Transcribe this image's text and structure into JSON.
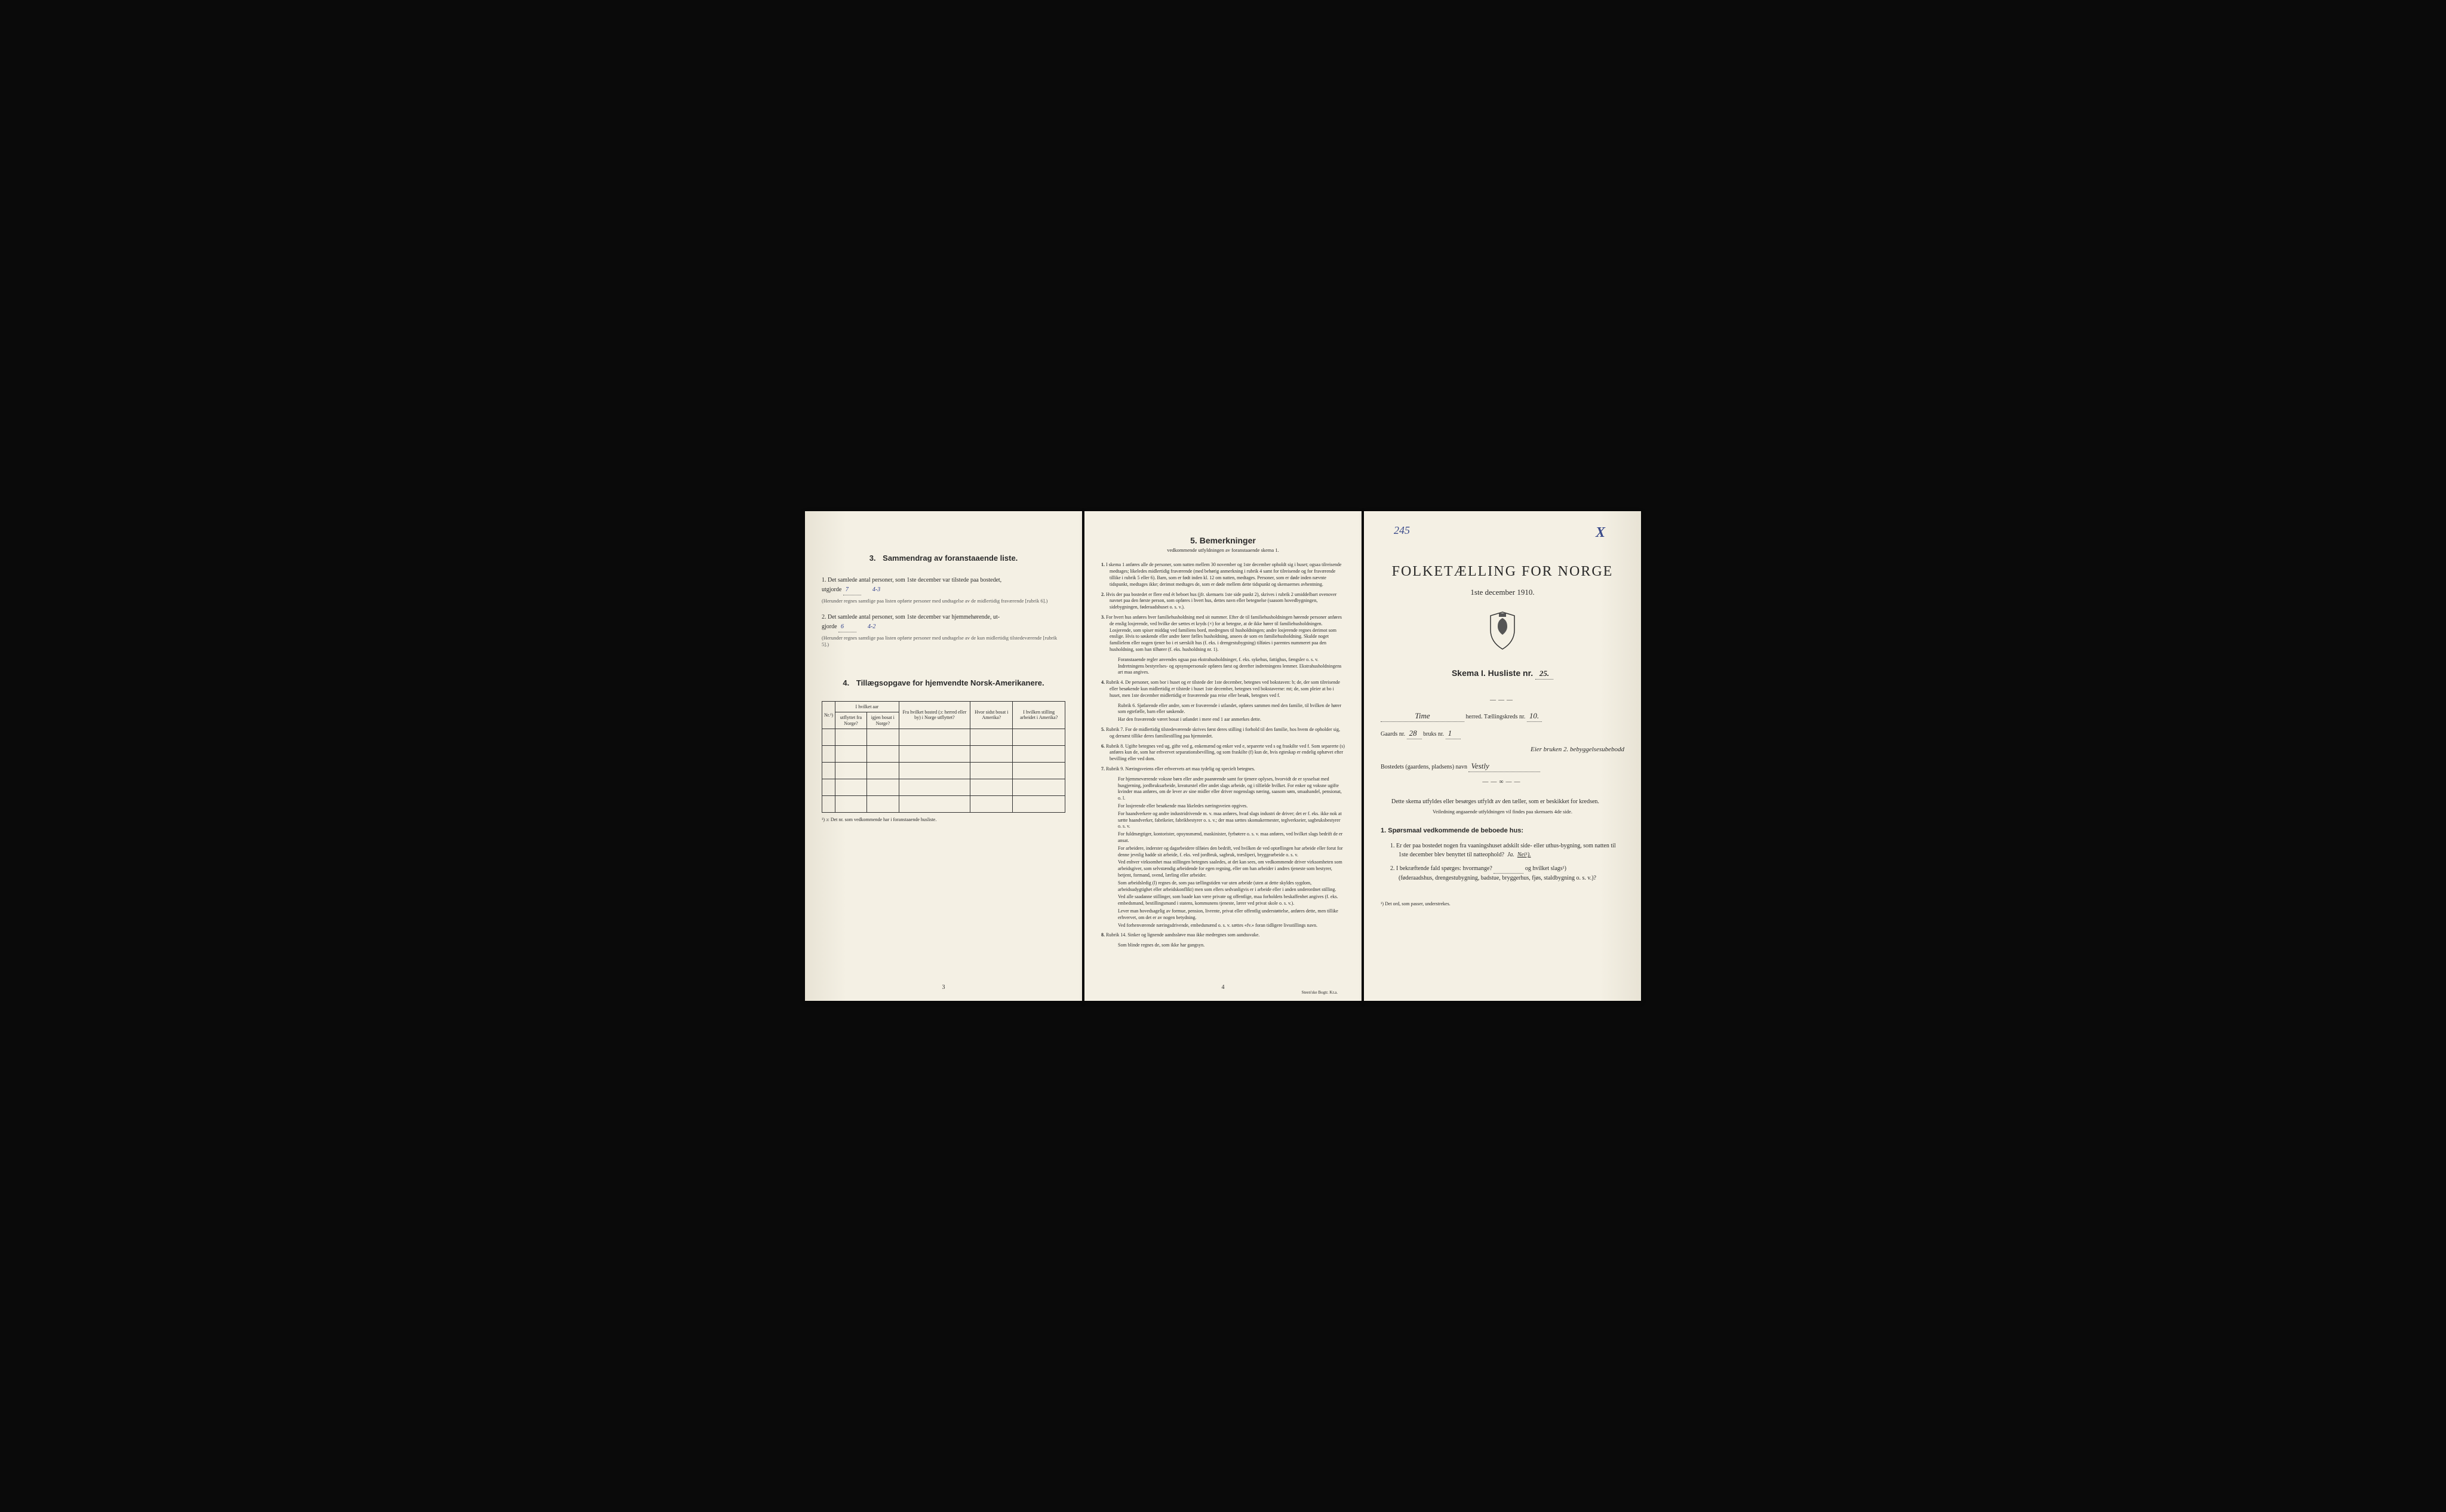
{
  "colors": {
    "paper": "#f4f0e4",
    "ink": "#2a2a2a",
    "handwriting": "#2a3a8a",
    "background": "#0a0a0a"
  },
  "page_left": {
    "section3": {
      "num": "3.",
      "title": "Sammendrag av foranstaaende liste.",
      "item1_prefix": "1.",
      "item1_text_a": "Det samlede antal personer, som 1ste december var tilstede paa bostedet,",
      "item1_text_b": "utgjorde",
      "item1_fill": "7",
      "item1_fill2": "4-3",
      "item1_note": "(Herunder regnes samtlige paa listen opførte personer med undtagelse av de midlertidig fraværende [rubrik 6].)",
      "item2_prefix": "2.",
      "item2_text_a": "Det samlede antal personer, som 1ste december var hjemmehørende, ut-",
      "item2_text_b": "gjorde",
      "item2_fill": "6",
      "item2_fill2": "4-2",
      "item2_note": "(Herunder regnes samtlige paa listen opførte personer med undtagelse av de kun midlertidig tilstedeværende [rubrik 5].)"
    },
    "section4": {
      "num": "4.",
      "title": "Tillægsopgave for hjemvendte Norsk-Amerikanere.",
      "col_nr": "Nr.¹)",
      "col1_a": "I hvilket aar",
      "col1_b": "utflyttet fra Norge?",
      "col1_c": "igjen bosat i Norge?",
      "col2": "Fra hvilket bosted (ɔ: herred eller by) i Norge utflyttet?",
      "col3": "Hvor sidst bosat i Amerika?",
      "col4": "I hvilken stilling arbeidet i Amerika?",
      "footnote": "¹) ɔ: Det nr. som vedkommende har i foranstaaende husliste."
    },
    "page_num": "3"
  },
  "page_middle": {
    "title_num": "5.",
    "title": "Bemerkninger",
    "subtitle": "vedkommende utfyldningen av foranstaaende skema 1.",
    "items": [
      {
        "idx": "1.",
        "text": "I skema 1 anføres alle de personer, som natten mellem 30 november og 1ste december opholdt sig i huset; ogsaa tilreisende medtages; likeledes midlertidig fraværende (med behørig anmerkning i rubrik 4 samt for tilreisende og for fraværende tillike i rubrik 5 eller 6). Barn, som er født inden kl. 12 om natten, medtages. Personer, som er døde inden nævnte tidspunkt, medtages ikke; derimot medtages de, som er døde mellem dette tidspunkt og skemaernes avhentning."
      },
      {
        "idx": "2.",
        "text": "Hvis der paa bostedet er flere end ét beboet hus (jfr. skemaets 1ste side punkt 2), skrives i rubrik 2 umiddelbart ovenover navnet paa den første person, som opføres i hvert hus, dettes navn eller betegnelse (saasom hovedbygningen, sidebygningen, føderaadshuset o. s. v.)."
      },
      {
        "idx": "3.",
        "text": "For hvert hus anføres hver familiehusholdning med sit nummer. Efter de til familiehusholdningen hørende personer anføres de enslig losjerende, ved hvilke der sættes et kryds (×) for at betegne, at de ikke hører til familiehusholdningen. Losjerende, som spiser middag ved familiens bord, medregnes til husholdningen; andre losjerende regnes derimot som enslige. Hvis to søskende eller andre fører fælles husholdning, ansees de som en familiehusholdning. Skulde noget familielem eller nogen tjener bo i et særskilt hus (f. eks. i drengestubygning) tilføies i parentes nummeret paa den husholdning, som han tilhører (f. eks. husholdning nr. 1).",
        "subs": [
          "Foranstaaende regler anvendes ogsaa paa ekstrahusholdninger, f. eks. sykehus, fattighus, fængsler o. s. v. Indretningens bestyrelses- og opsynspersonale opføres først og derefter indretningens lemmer. Ekstrahusholdningens art maa angives."
        ]
      },
      {
        "idx": "4.",
        "text": "Rubrik 4. De personer, som bor i huset og er tilstede der 1ste december, betegnes ved bokstaven: b; de, der som tilreisende eller besøkende kun midlertidig er tilstede i huset 1ste december, betegnes ved bokstaverne: mt; de, som pleier at bo i huset, men 1ste december midlertidig er fraværende paa reise eller besøk, betegnes ved f.",
        "subs": [
          "Rubrik 6. Sjøfarende eller andre, som er fraværende i utlandet, opføres sammen med den familie, til hvilken de hører som egtefælle, barn eller søskende.",
          "Har den fraværende været bosat i utlandet i mere end 1 aar anmerkes dette."
        ]
      },
      {
        "idx": "5.",
        "text": "Rubrik 7. For de midlertidig tilstedeværende skrives først deres stilling i forhold til den familie, hos hvem de opholder sig, og dernæst tillike deres familiestilling paa hjemstedet."
      },
      {
        "idx": "6.",
        "text": "Rubrik 8. Ugifte betegnes ved ug, gifte ved g, enkemænd og enker ved e, separerte ved s og fraskilte ved f. Som separerte (s) anføres kun de, som har erhvervet separationsbevilling, og som fraskilte (f) kun de, hvis egteskap er endelig ophævet efter bevilling eller ved dom."
      },
      {
        "idx": "7.",
        "text": "Rubrik 9. Næringsveiens eller erhvervets art maa tydelig og specielt betegnes.",
        "subs": [
          "For hjemmeværende voksne børn eller andre paarørende samt for tjenere oplyses, hvorvidt de er sysselsat med husgjerning, jordbruksarbeide, kreaturstel eller andet slags arbeide, og i tilfælde hvilket. For enker og voksne ugifte kvinder maa anføres, om de lever av sine midler eller driver nogenslags næring, saasom søm, smaahandel, pensionat, o. l.",
          "For losjerende eller besøkende maa likeledes næringsveien opgives.",
          "For haandverkere og andre industridrivende m. v. maa anføres, hvad slags industri de driver; det er f. eks. ikke nok at sætte haandverker, fabrikeier, fabrikbestyrer o. s. v.; der maa sættes skomakermester, teglverkseier, sagbruksbestyrer o. s. v.",
          "For fuldmægtiger, kontorister, opsynsmænd, maskinister, fyrbøtere o. s. v. maa anføres, ved hvilket slags bedrift de er ansat.",
          "For arbeidere, inderster og dagarbeidere tilføies den bedrift, ved hvilken de ved optællingen har arbeide eller forut for denne jevnlig hadde sit arbeide, f. eks. ved jordbruk, sagbruk, træsliperi, bryggearbeide o. s. v.",
          "Ved enhver virksomhet maa stillingen betegnes saaledes, at det kan sees, om vedkommende driver virksomheten som arbeidsgiver, som selvstændig arbeidende for egen regning, eller om han arbeider i andres tjeneste som bestyrer, betjent, formand, svend, lærling eller arbeider.",
          "Som arbeidsledig (l) regnes de, som paa tællingstiden var uten arbeide (uten at dette skyldes sygdom, arbeidsudygtighet eller arbeidskonflikt) men som ellers sedvanligvis er i arbeide eller i anden underordnet stilling.",
          "Ved alle saadanne stillinger, som baade kan være private og offentlige, maa forholdets beskaffenhet angives (f. eks. embedsmand, bestillingsmand i statens, kommunens tjeneste, lærer ved privat skole o. s. v.).",
          "Lever man hovedsagelig av formue, pension, livrente, privat eller offentlig understøttelse, anføres dette, men tillike erhvervet, om det er av nogen betydning.",
          "Ved forhenværende næringsdrivende, embedsmænd o. s. v. sættes «fv.» foran tidligere livsstillings navn."
        ]
      },
      {
        "idx": "8.",
        "text": "Rubrik 14. Sinker og lignende aandssløve maa ikke medregnes som aandssvake.",
        "subs": [
          "Som blinde regnes de, som ikke har gangsyn."
        ]
      }
    ],
    "page_num": "4",
    "printer": "Steen'ske Bogtr. Kr.a."
  },
  "page_right": {
    "hand_topleft": "245",
    "hand_topright": "X",
    "main_title": "FOLKETÆLLING FOR NORGE",
    "date": "1ste december 1910.",
    "skema_label": "Skema I.  Husliste nr.",
    "skema_nr": "25.",
    "herred_fill": "Time",
    "herred_suffix": "herred.  Tællingskreds nr.",
    "kreds_nr": "10.",
    "gaards_label": "Gaards nr.",
    "gaards_nr": "28",
    "bruks_label": "bruks nr.",
    "bruks_nr": "1",
    "hand_line": "Eier bruken 2. bebyggelsesubebodd",
    "bosted_label": "Bostedets (gaardens, pladsens) navn",
    "bosted_fill": "Vestly",
    "instruction": "Dette skema utfyldes eller besørges utfyldt av den tæller, som er beskikket for kredsen.",
    "instruction_sub": "Veiledning angaaende utfyldningen vil findes paa skemaets 4de side.",
    "q_heading": "1. Spørsmaal vedkommende de beboede hus:",
    "q1_num": "1.",
    "q1_text": "Er der paa bostedet nogen fra vaaningshuset adskilt side- eller uthus-bygning, som natten til 1ste december blev benyttet til natteophold?",
    "q1_ja": "Ja.",
    "q1_nei": "Nei¹).",
    "q2_num": "2.",
    "q2_text_a": "I bekræftende fald spørges: hvormange?",
    "q2_text_b": "og hvilket slags¹)",
    "q2_text_c": "(føderaadshus, drengestubygning, badstue, bryggerhus, fjøs, staldbygning o. s. v.)?",
    "footnote": "¹) Det ord, som passer, understrekes."
  }
}
